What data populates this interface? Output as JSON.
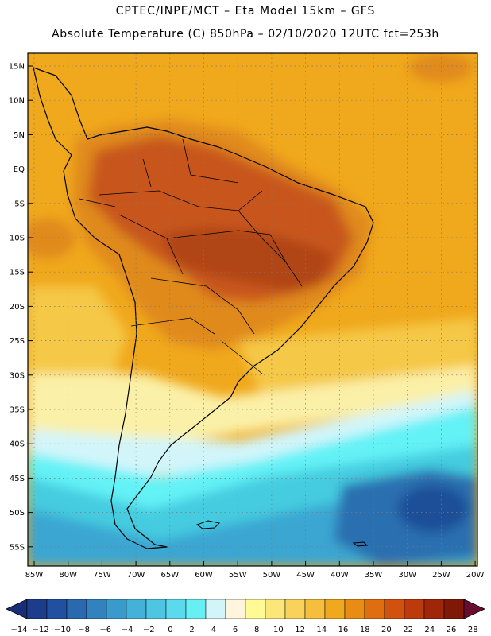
{
  "header": {
    "line1": "CPTEC/INPE/MCT –  Eta Model 15km – GFS",
    "line2": "Absolute Temperature (C) 850hPa – 02/10/2020 12UTC fct=253h"
  },
  "map": {
    "lat_labels": [
      "15N",
      "10N",
      "5N",
      "EQ",
      "5S",
      "10S",
      "15S",
      "20S",
      "25S",
      "30S",
      "35S",
      "40S",
      "45S",
      "50S",
      "55S"
    ],
    "lon_labels": [
      "85W",
      "80W",
      "75W",
      "70W",
      "65W",
      "60W",
      "55W",
      "50W",
      "45W",
      "40W",
      "35W",
      "30W",
      "25W",
      "20W"
    ],
    "colors": {
      "land_warm": "#e08a1a",
      "hot": "#c8561a",
      "very_hot": "#b04414",
      "ocean_warm": "#f0a81c",
      "ocean_mid": "#f5c846",
      "cool": "#fbf0a8",
      "pale": "#d2f5fa",
      "cyan": "#64f2f6",
      "cyan_mid": "#44cce0",
      "blue_mid": "#3aa6d2",
      "blue_dark": "#2a6fb0",
      "navy": "#1f4f98"
    }
  },
  "colorbar": {
    "labels": [
      "-14",
      "-12",
      "-10",
      "-8",
      "-6",
      "-4",
      "-2",
      "0",
      "2",
      "4",
      "6",
      "8",
      "10",
      "12",
      "14",
      "16",
      "18",
      "20",
      "22",
      "24",
      "26",
      "28"
    ],
    "colors": [
      "#1e3c8c",
      "#2250a0",
      "#2a68b0",
      "#3282be",
      "#3a9acc",
      "#44b2d8",
      "#4ec6e2",
      "#5adaec",
      "#66f0f4",
      "#d2f5fa",
      "#fff5dc",
      "#fffa96",
      "#fbe678",
      "#f8d25a",
      "#f5be3c",
      "#f0a81e",
      "#ea8c14",
      "#e06e10",
      "#d0520e",
      "#bc3a0c",
      "#a0260a",
      "#801808"
    ],
    "left_cap_color": "#1a2e78",
    "right_cap_color": "#6a0c30"
  }
}
